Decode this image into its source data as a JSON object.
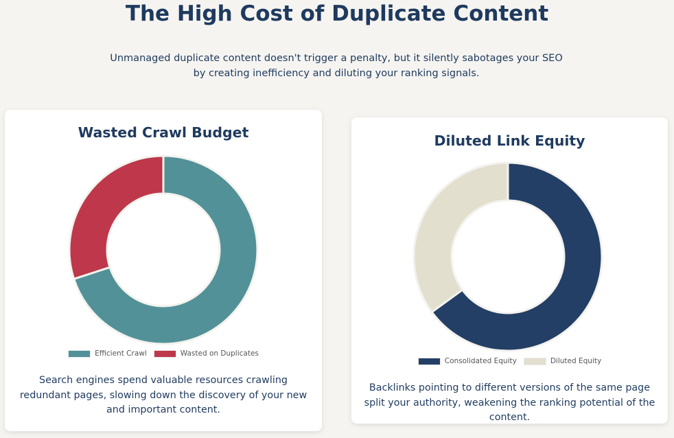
{
  "header": {
    "title": "The High Cost of Duplicate Content",
    "intro": "Unmanaged duplicate content doesn't trigger a penalty, but it silently sabotages your SEO by creating inefficiency and diluting your ranking signals."
  },
  "cards": [
    {
      "title": "Wasted Crawl Budget",
      "description": "Search engines spend valuable resources crawling redundant pages, slowing down the discovery of your new and important content.",
      "legend": [
        "Efficient Crawl",
        "Wasted on Duplicates"
      ]
    },
    {
      "title": "Diluted Link Equity",
      "description": "Backlinks pointing to different versions of the same page split your authority, weakening the ranking potential of the content.",
      "legend": [
        "Consolidated Equity",
        "Diluted Equity"
      ]
    }
  ],
  "chart_data": [
    {
      "type": "pie",
      "subtype": "doughnut",
      "title": "Wasted Crawl Budget",
      "categories": [
        "Efficient Crawl",
        "Wasted on Duplicates"
      ],
      "values": [
        70,
        30
      ],
      "colors": [
        "#529197",
        "#be374b"
      ],
      "legend_position": "bottom"
    },
    {
      "type": "pie",
      "subtype": "doughnut",
      "title": "Diluted Link Equity",
      "categories": [
        "Consolidated Equity",
        "Diluted Equity"
      ],
      "values": [
        65,
        35
      ],
      "colors": [
        "#243f65",
        "#e2dfcf"
      ],
      "legend_position": "bottom"
    }
  ]
}
